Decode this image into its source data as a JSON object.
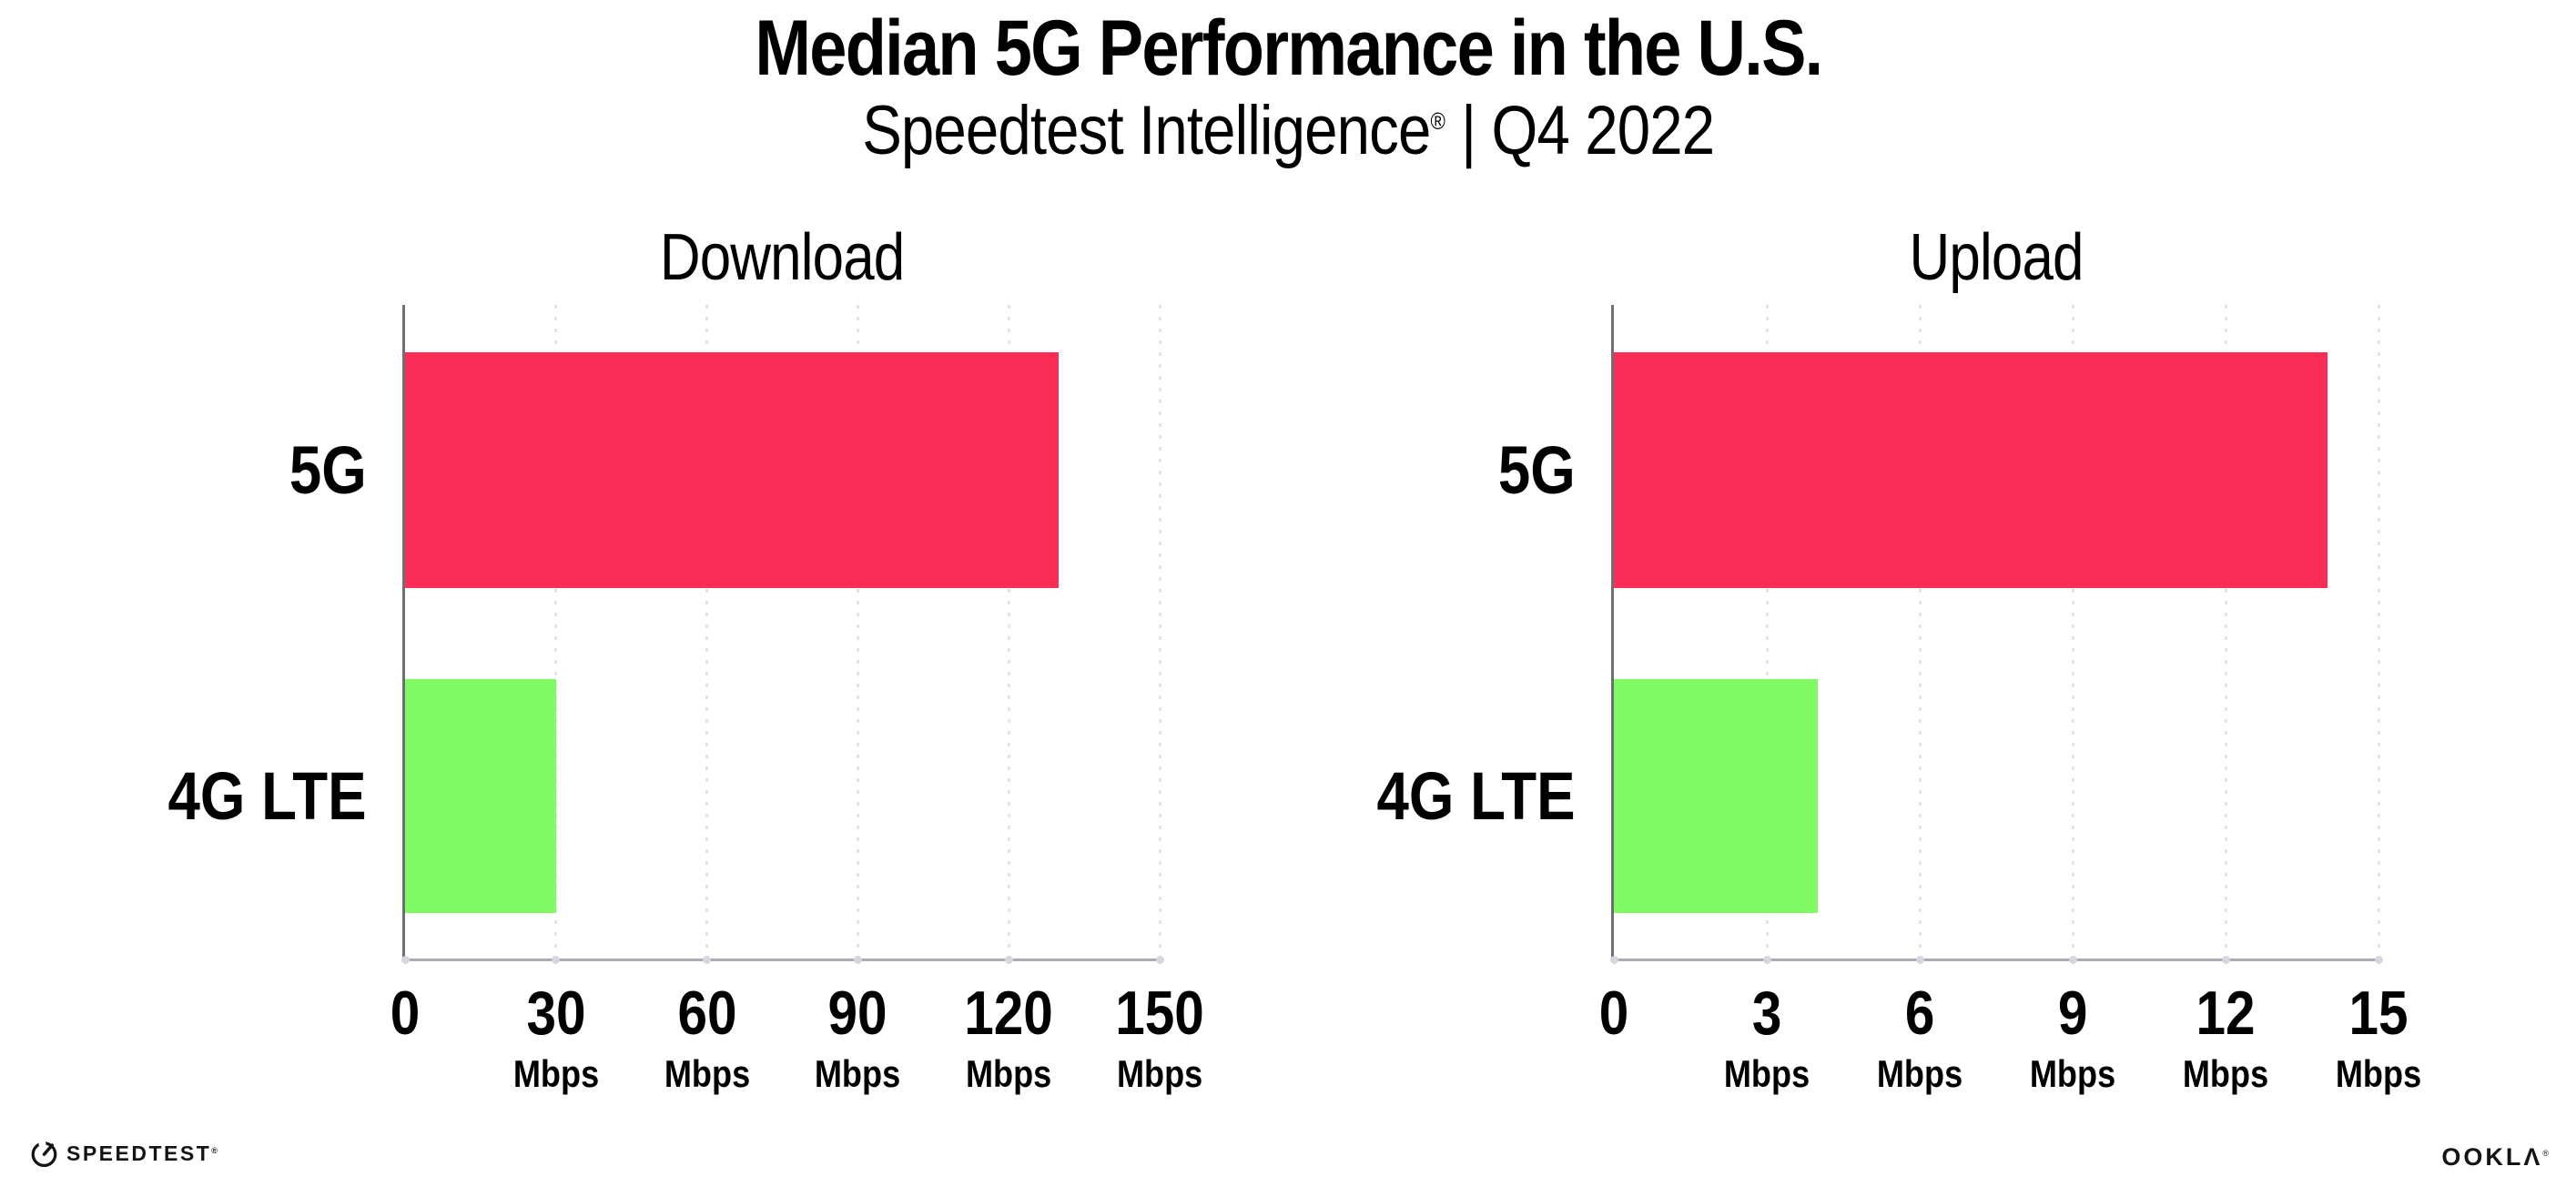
{
  "header": {
    "title": "Median 5G Performance in the U.S.",
    "subtitle": {
      "brand": "Speedtest Intelligence",
      "registered_mark": "®",
      "separator": " | ",
      "period": "Q4 2022"
    }
  },
  "chart_data": [
    {
      "type": "bar",
      "orientation": "horizontal",
      "title": "Download",
      "categories": [
        "5G",
        "4G LTE"
      ],
      "values": [
        130,
        30
      ],
      "unit": "Mbps",
      "xlim": [
        0,
        150
      ],
      "xticks": [
        0,
        30,
        60,
        90,
        120,
        150
      ],
      "bar_colors": [
        "#FB2C55",
        "#80FB64"
      ],
      "xlabel": "",
      "ylabel": "",
      "grid": "vertical-dotted",
      "legend": "none"
    },
    {
      "type": "bar",
      "orientation": "horizontal",
      "title": "Upload",
      "categories": [
        "5G",
        "4G LTE"
      ],
      "values": [
        14,
        4
      ],
      "unit": "Mbps",
      "xlim": [
        0,
        15
      ],
      "xticks": [
        0,
        3,
        6,
        9,
        12,
        15
      ],
      "bar_colors": [
        "#FB2C55",
        "#80FB64"
      ],
      "xlabel": "",
      "ylabel": "",
      "grid": "vertical-dotted",
      "legend": "none"
    }
  ],
  "footer": {
    "speedtest_logo": {
      "icon": "speedtest-gauge-icon",
      "label": "SPEEDTEST",
      "registered_mark": "®"
    },
    "ookla_logo": {
      "label": "OOKLA",
      "display": "OOKLΛ",
      "registered_mark": "®"
    }
  }
}
